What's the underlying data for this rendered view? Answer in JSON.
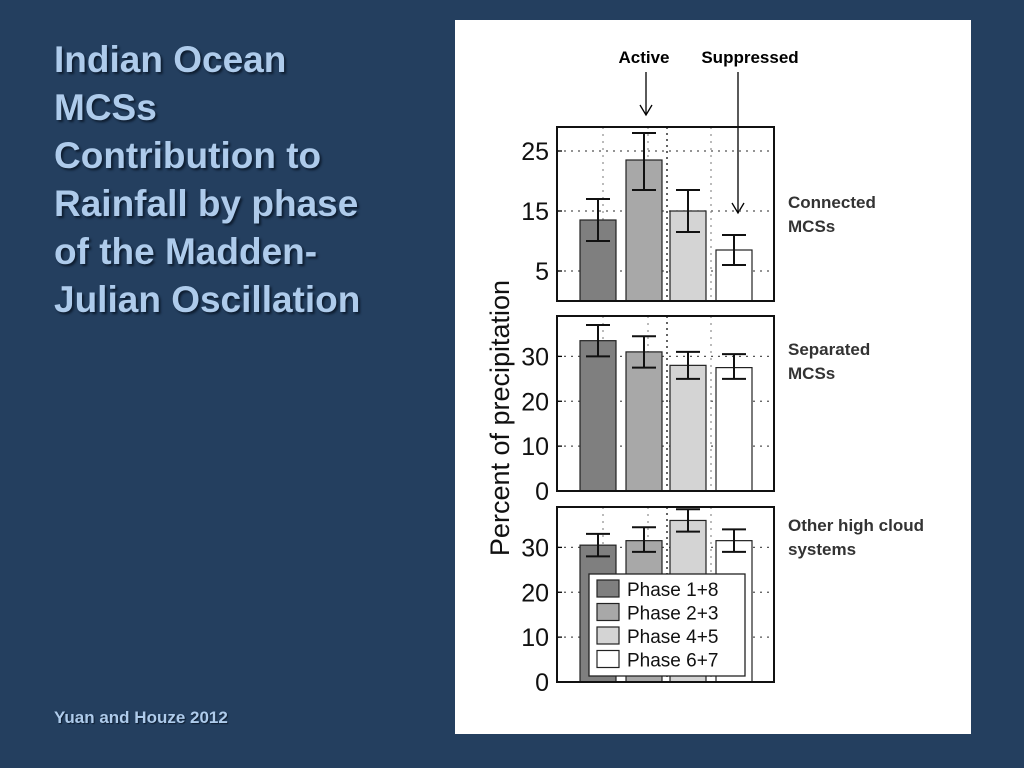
{
  "slide": {
    "title_lines": [
      "Indian Ocean",
      "MCSs",
      "Contribution to",
      "Rainfall by phase",
      "of the Madden-",
      "Julian Oscillation"
    ],
    "citation": "Yuan and Houze 2012"
  },
  "chart_data": {
    "type": "bar",
    "ylabel": "Percent of precipitation",
    "top_labels": {
      "active": "Active",
      "suppressed": "Suppressed"
    },
    "categories": [
      "Phase 1+8",
      "Phase 2+3",
      "Phase 4+5",
      "Phase 6+7"
    ],
    "colors": [
      "#7f7f7f",
      "#a8a8a8",
      "#d4d4d4",
      "#ffffff"
    ],
    "grid": true,
    "panels": [
      {
        "label_lines": [
          "Connected",
          "MCSs"
        ],
        "ylim": [
          0,
          29
        ],
        "yticks": [
          5,
          15,
          25
        ],
        "values": [
          13.5,
          23.5,
          15,
          8.5
        ],
        "errors": [
          [
            10,
            17
          ],
          [
            18.5,
            28
          ],
          [
            11.5,
            18.5
          ],
          [
            6,
            11
          ]
        ]
      },
      {
        "label_lines": [
          "Separated",
          "MCSs"
        ],
        "ylim": [
          0,
          39
        ],
        "yticks": [
          0,
          10,
          20,
          30
        ],
        "values": [
          33.5,
          31,
          28,
          27.5
        ],
        "errors": [
          [
            30,
            37
          ],
          [
            27.5,
            34.5
          ],
          [
            25,
            31
          ],
          [
            25,
            30.5
          ]
        ]
      },
      {
        "label_lines": [
          "Other high cloud",
          "systems"
        ],
        "ylim": [
          0,
          39
        ],
        "yticks": [
          0,
          10,
          20,
          30
        ],
        "values": [
          30.5,
          31.5,
          36,
          31.5
        ],
        "errors": [
          [
            28,
            33
          ],
          [
            29,
            34.5
          ],
          [
            33.5,
            38.5
          ],
          [
            29,
            34
          ]
        ]
      }
    ],
    "legend": {
      "placement": "inside bottom panel, lower-center",
      "entries": [
        "Phase 1+8",
        "Phase 2+3",
        "Phase 4+5",
        "Phase 6+7"
      ]
    }
  }
}
